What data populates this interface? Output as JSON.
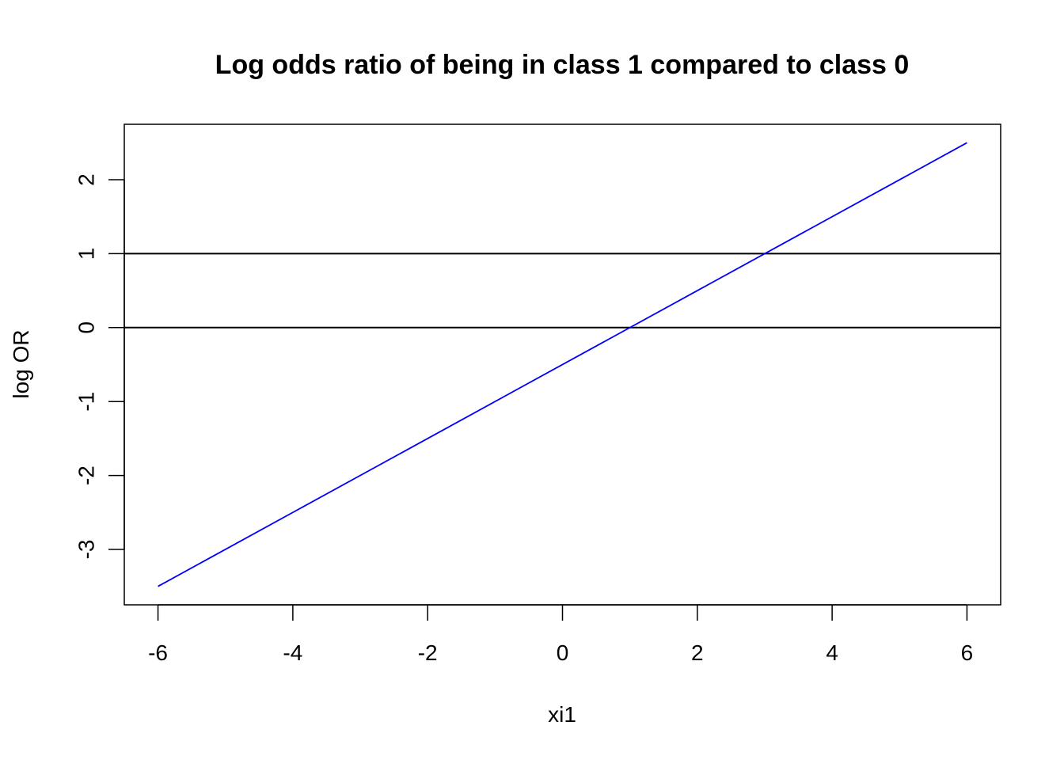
{
  "chart_data": {
    "type": "line",
    "title": "Log odds ratio of being in class 1 compared to class 0",
    "xlabel": "xi1",
    "ylabel": "log OR",
    "xlim": [
      -6.5,
      6.5
    ],
    "ylim": [
      -3.75,
      2.75
    ],
    "x_ticks": [
      -6,
      -4,
      -2,
      0,
      2,
      4,
      6
    ],
    "y_ticks": [
      -3,
      -2,
      -1,
      0,
      1,
      2
    ],
    "grid": false,
    "series": [
      {
        "x": [
          -6,
          6
        ],
        "y": [
          -3.5,
          2.5
        ],
        "color": "#0000ff"
      }
    ],
    "reference_lines": [
      {
        "orientation": "horizontal",
        "y": 0,
        "color": "#000000"
      },
      {
        "orientation": "horizontal",
        "y": 1,
        "color": "#000000"
      }
    ]
  }
}
